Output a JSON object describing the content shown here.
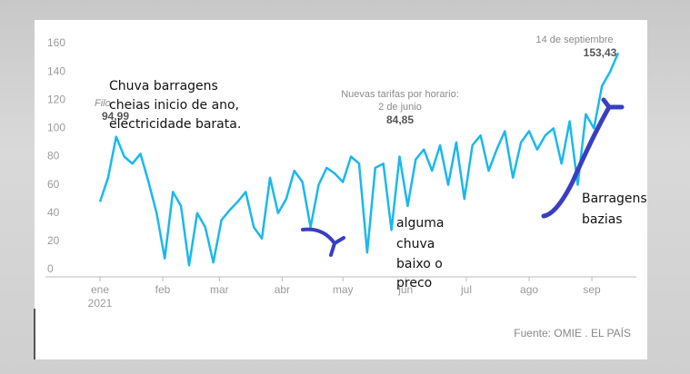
{
  "chart_data": {
    "type": "line",
    "x": [
      1,
      5,
      9,
      13,
      17,
      21,
      25,
      29,
      33,
      37,
      41,
      45,
      49,
      53,
      57,
      61,
      65,
      69,
      73,
      77,
      81,
      85,
      89,
      93,
      97,
      101,
      105,
      109,
      113,
      117,
      121,
      125,
      129,
      133,
      137,
      141,
      145,
      149,
      153,
      157,
      161,
      165,
      169,
      173,
      177,
      181,
      185,
      189,
      193,
      197,
      201,
      205,
      209,
      213,
      217,
      221,
      225,
      229,
      233,
      237,
      241,
      245,
      249,
      253,
      257
    ],
    "values": [
      48,
      65,
      94,
      80,
      75,
      82,
      62,
      40,
      8,
      55,
      45,
      3,
      40,
      30,
      5,
      35,
      42,
      48,
      55,
      30,
      22,
      65,
      40,
      50,
      70,
      62,
      30,
      60,
      72,
      68,
      62,
      80,
      75,
      12,
      72,
      75,
      28,
      80,
      45,
      78,
      85,
      70,
      88,
      60,
      90,
      50,
      88,
      95,
      70,
      85,
      98,
      65,
      90,
      98,
      85,
      95,
      100,
      75,
      105,
      60,
      110,
      100,
      130,
      140,
      153.43
    ],
    "color": "#1ab8ee",
    "xlim": [
      -10,
      268
    ],
    "xticks": [
      {
        "value": 1,
        "label": "ene"
      },
      {
        "value": 32,
        "label": "feb"
      },
      {
        "value": 60,
        "label": "mar"
      },
      {
        "value": 91,
        "label": "abr"
      },
      {
        "value": 121,
        "label": "may"
      },
      {
        "value": 152,
        "label": "jun"
      },
      {
        "value": 182,
        "label": "jul"
      },
      {
        "value": 213,
        "label": "ago"
      },
      {
        "value": 244,
        "label": "sep"
      }
    ],
    "year_label": "2021",
    "ylim": [
      0,
      160
    ],
    "yticks": [
      0,
      20,
      40,
      60,
      80,
      100,
      120,
      140,
      160
    ],
    "grid": false,
    "annotations": [
      {
        "lines": [
          "14 de septiembre"
        ],
        "value_label": "153,43"
      },
      {
        "lines": [
          "Nuevas tarifas por horario:",
          "2 de junio"
        ],
        "value_label": "84,85"
      },
      {
        "lines": [
          "Filo"
        ],
        "value_label": "94,99"
      }
    ],
    "source": "Fuente: OMIE . EL PAÍS"
  },
  "handwritten_notes": [
    [
      "Chuva barragens",
      "cheias inicio de ano,",
      "electricidade barata."
    ],
    [
      "alguma",
      "chuva",
      "baixo o",
      "preco"
    ],
    [
      "Barragens",
      "bazias"
    ]
  ]
}
